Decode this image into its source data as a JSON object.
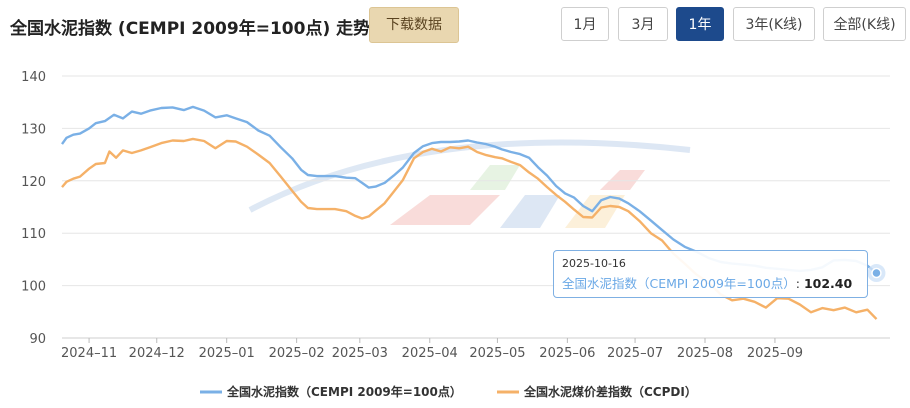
{
  "title": "全国水泥指数 (CEMPI 2009年=100点) 走势",
  "download_label": "下载数据",
  "ranges": [
    "1月",
    "3月",
    "1年",
    "3年(K线)",
    "全部(K线)"
  ],
  "active_range": "1年",
  "colors": {
    "series1": "#7ab0e6",
    "series2": "#f5b168",
    "active": "#1d4a8c",
    "grid": "#e6e6e6"
  },
  "tooltip": {
    "date": "2025-10-16",
    "series": "全国水泥指数（CEMPI 2009年=100点）",
    "separator": ":",
    "value": "102.40"
  },
  "chart_data": {
    "type": "line",
    "ylim": [
      90,
      140
    ],
    "yticks": [
      90,
      100,
      110,
      120,
      130,
      140
    ],
    "grid": true,
    "legend": "bottom-center",
    "xlim": [
      "2024-10-20",
      "2025-10-22"
    ],
    "xticks": [
      {
        "date": "2024-11-01",
        "label": "2024–11"
      },
      {
        "date": "2024-12-01",
        "label": "2024–12"
      },
      {
        "date": "2025-01-01",
        "label": "2025–01"
      },
      {
        "date": "2025-02-01",
        "label": "2025–02"
      },
      {
        "date": "2025-03-01",
        "label": "2025–03"
      },
      {
        "date": "2025-04-01",
        "label": "2025–04"
      },
      {
        "date": "2025-05-01",
        "label": "2025–05"
      },
      {
        "date": "2025-06-01",
        "label": "2025–06"
      },
      {
        "date": "2025-07-01",
        "label": "2025–07"
      },
      {
        "date": "2025-08-01",
        "label": "2025–08"
      },
      {
        "date": "2025-09-01",
        "label": "2025–09"
      }
    ],
    "series": [
      {
        "name": "全国水泥指数（CEMPI 2009年=100点）",
        "points": [
          [
            "2024-10-20",
            127.0
          ],
          [
            "2024-10-22",
            128.2
          ],
          [
            "2024-10-25",
            128.8
          ],
          [
            "2024-10-28",
            129.0
          ],
          [
            "2024-11-01",
            130.0
          ],
          [
            "2024-11-04",
            131.0
          ],
          [
            "2024-11-08",
            131.4
          ],
          [
            "2024-11-12",
            132.6
          ],
          [
            "2024-11-16",
            131.9
          ],
          [
            "2024-11-20",
            133.2
          ],
          [
            "2024-11-24",
            132.8
          ],
          [
            "2024-11-28",
            133.4
          ],
          [
            "2024-12-03",
            133.9
          ],
          [
            "2024-12-08",
            134.0
          ],
          [
            "2024-12-13",
            133.5
          ],
          [
            "2024-12-17",
            134.1
          ],
          [
            "2024-12-22",
            133.4
          ],
          [
            "2024-12-27",
            132.1
          ],
          [
            "2025-01-01",
            132.5
          ],
          [
            "2025-01-05",
            131.9
          ],
          [
            "2025-01-10",
            131.2
          ],
          [
            "2025-01-15",
            129.6
          ],
          [
            "2025-01-20",
            128.6
          ],
          [
            "2025-01-25",
            126.4
          ],
          [
            "2025-01-30",
            124.3
          ],
          [
            "2025-02-03",
            122.1
          ],
          [
            "2025-02-06",
            121.1
          ],
          [
            "2025-02-10",
            120.9
          ],
          [
            "2025-02-18",
            120.9
          ],
          [
            "2025-02-23",
            120.6
          ],
          [
            "2025-02-27",
            120.5
          ],
          [
            "2025-03-02",
            119.6
          ],
          [
            "2025-03-05",
            118.7
          ],
          [
            "2025-03-08",
            118.9
          ],
          [
            "2025-03-12",
            119.6
          ],
          [
            "2025-03-16",
            121.0
          ],
          [
            "2025-03-20",
            122.5
          ],
          [
            "2025-03-25",
            125.3
          ],
          [
            "2025-03-29",
            126.6
          ],
          [
            "2025-04-02",
            127.2
          ],
          [
            "2025-04-06",
            127.4
          ],
          [
            "2025-04-10",
            127.4
          ],
          [
            "2025-04-14",
            127.5
          ],
          [
            "2025-04-18",
            127.7
          ],
          [
            "2025-04-22",
            127.3
          ],
          [
            "2025-04-26",
            127.0
          ],
          [
            "2025-04-30",
            126.5
          ],
          [
            "2025-05-03",
            126.0
          ],
          [
            "2025-05-07",
            125.5
          ],
          [
            "2025-05-11",
            125.1
          ],
          [
            "2025-05-15",
            124.4
          ],
          [
            "2025-05-19",
            122.6
          ],
          [
            "2025-05-23",
            121.0
          ],
          [
            "2025-05-27",
            119.0
          ],
          [
            "2025-05-31",
            117.6
          ],
          [
            "2025-06-04",
            116.8
          ],
          [
            "2025-06-08",
            115.2
          ],
          [
            "2025-06-12",
            114.2
          ],
          [
            "2025-06-16",
            116.3
          ],
          [
            "2025-06-20",
            116.9
          ],
          [
            "2025-06-24",
            116.6
          ],
          [
            "2025-06-28",
            115.7
          ],
          [
            "2025-07-03",
            114.2
          ],
          [
            "2025-07-08",
            112.4
          ],
          [
            "2025-07-13",
            110.6
          ],
          [
            "2025-07-18",
            108.8
          ],
          [
            "2025-07-23",
            107.4
          ],
          [
            "2025-07-28",
            106.5
          ],
          [
            "2025-08-03",
            105.2
          ],
          [
            "2025-08-08",
            104.5
          ],
          [
            "2025-08-13",
            104.2
          ],
          [
            "2025-08-18",
            104.0
          ],
          [
            "2025-08-23",
            103.8
          ],
          [
            "2025-08-28",
            103.4
          ],
          [
            "2025-09-02",
            103.2
          ],
          [
            "2025-09-07",
            103.0
          ],
          [
            "2025-09-12",
            102.8
          ],
          [
            "2025-09-17",
            103.0
          ],
          [
            "2025-09-22",
            103.5
          ],
          [
            "2025-09-27",
            104.8
          ],
          [
            "2025-10-02",
            104.9
          ],
          [
            "2025-10-07",
            104.7
          ],
          [
            "2025-10-12",
            103.8
          ],
          [
            "2025-10-16",
            102.4
          ]
        ]
      },
      {
        "name": "全国水泥煤价差指数（CCPDI）",
        "points": [
          [
            "2024-10-20",
            118.8
          ],
          [
            "2024-10-22",
            119.8
          ],
          [
            "2024-10-25",
            120.4
          ],
          [
            "2024-10-28",
            120.8
          ],
          [
            "2024-11-01",
            122.3
          ],
          [
            "2024-11-04",
            123.2
          ],
          [
            "2024-11-08",
            123.4
          ],
          [
            "2024-11-10",
            125.6
          ],
          [
            "2024-11-13",
            124.4
          ],
          [
            "2024-11-16",
            125.8
          ],
          [
            "2024-11-20",
            125.3
          ],
          [
            "2024-11-24",
            125.8
          ],
          [
            "2024-11-28",
            126.4
          ],
          [
            "2024-12-03",
            127.2
          ],
          [
            "2024-12-08",
            127.7
          ],
          [
            "2024-12-13",
            127.6
          ],
          [
            "2024-12-17",
            128.0
          ],
          [
            "2024-12-22",
            127.6
          ],
          [
            "2024-12-27",
            126.2
          ],
          [
            "2025-01-01",
            127.6
          ],
          [
            "2025-01-05",
            127.5
          ],
          [
            "2025-01-10",
            126.5
          ],
          [
            "2025-01-15",
            125.0
          ],
          [
            "2025-01-20",
            123.4
          ],
          [
            "2025-01-25",
            120.8
          ],
          [
            "2025-01-30",
            118.1
          ],
          [
            "2025-02-03",
            116.0
          ],
          [
            "2025-02-06",
            114.8
          ],
          [
            "2025-02-10",
            114.6
          ],
          [
            "2025-02-18",
            114.6
          ],
          [
            "2025-02-23",
            114.2
          ],
          [
            "2025-02-27",
            113.3
          ],
          [
            "2025-03-02",
            112.8
          ],
          [
            "2025-03-05",
            113.2
          ],
          [
            "2025-03-08",
            114.3
          ],
          [
            "2025-03-12",
            115.7
          ],
          [
            "2025-03-16",
            117.9
          ],
          [
            "2025-03-20",
            120.1
          ],
          [
            "2025-03-25",
            124.3
          ],
          [
            "2025-03-29",
            125.5
          ],
          [
            "2025-04-02",
            126.1
          ],
          [
            "2025-04-06",
            125.6
          ],
          [
            "2025-04-10",
            126.4
          ],
          [
            "2025-04-14",
            126.2
          ],
          [
            "2025-04-18",
            126.5
          ],
          [
            "2025-04-22",
            125.5
          ],
          [
            "2025-04-26",
            124.9
          ],
          [
            "2025-04-30",
            124.5
          ],
          [
            "2025-05-03",
            124.3
          ],
          [
            "2025-05-07",
            123.6
          ],
          [
            "2025-05-11",
            123.0
          ],
          [
            "2025-05-15",
            121.6
          ],
          [
            "2025-05-19",
            120.4
          ],
          [
            "2025-05-23",
            118.8
          ],
          [
            "2025-05-27",
            117.3
          ],
          [
            "2025-05-31",
            116.0
          ],
          [
            "2025-06-04",
            114.5
          ],
          [
            "2025-06-08",
            113.1
          ],
          [
            "2025-06-12",
            113.0
          ],
          [
            "2025-06-16",
            114.9
          ],
          [
            "2025-06-20",
            115.2
          ],
          [
            "2025-06-24",
            115.0
          ],
          [
            "2025-06-28",
            114.2
          ],
          [
            "2025-07-03",
            112.3
          ],
          [
            "2025-07-08",
            110.0
          ],
          [
            "2025-07-13",
            108.6
          ],
          [
            "2025-07-18",
            106.1
          ],
          [
            "2025-07-23",
            104.2
          ],
          [
            "2025-07-28",
            102.2
          ],
          [
            "2025-08-03",
            100.4
          ],
          [
            "2025-08-08",
            98.3
          ],
          [
            "2025-08-13",
            97.2
          ],
          [
            "2025-08-18",
            97.5
          ],
          [
            "2025-08-23",
            96.9
          ],
          [
            "2025-08-28",
            95.8
          ],
          [
            "2025-09-02",
            97.6
          ],
          [
            "2025-09-07",
            97.5
          ],
          [
            "2025-09-12",
            96.4
          ],
          [
            "2025-09-17",
            94.9
          ],
          [
            "2025-09-22",
            95.7
          ],
          [
            "2025-09-27",
            95.3
          ],
          [
            "2025-10-02",
            95.8
          ],
          [
            "2025-10-07",
            94.9
          ],
          [
            "2025-10-12",
            95.4
          ],
          [
            "2025-10-16",
            93.6
          ]
        ]
      }
    ]
  }
}
